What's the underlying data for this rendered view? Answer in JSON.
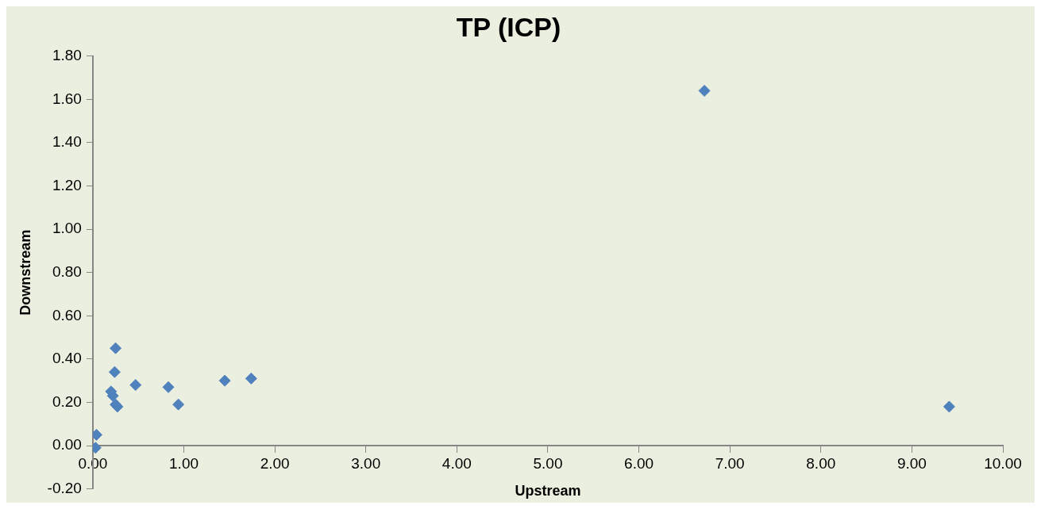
{
  "chart_data": {
    "type": "scatter",
    "title": "TP (ICP)",
    "xlabel": "Upstream",
    "ylabel": "Downstream",
    "x": [
      0.04,
      0.03,
      0.25,
      0.24,
      0.2,
      0.22,
      0.25,
      0.27,
      0.47,
      0.83,
      0.94,
      1.45,
      1.74,
      6.72,
      9.41
    ],
    "series": [
      {
        "color": "#4f81bd",
        "values": [
          0.05,
          -0.01,
          0.45,
          0.34,
          0.25,
          0.23,
          0.19,
          0.18,
          0.28,
          0.27,
          0.19,
          0.3,
          0.31,
          1.64,
          0.18
        ]
      }
    ],
    "xlim": [
      0,
      10
    ],
    "ylim": [
      -0.2,
      1.8
    ],
    "xticks": [
      {
        "value": 0,
        "label": "0.00"
      },
      {
        "value": 1,
        "label": "1.00"
      },
      {
        "value": 2,
        "label": "2.00"
      },
      {
        "value": 3,
        "label": "3.00"
      },
      {
        "value": 4,
        "label": "4.00"
      },
      {
        "value": 5,
        "label": "5.00"
      },
      {
        "value": 6,
        "label": "6.00"
      },
      {
        "value": 7,
        "label": "7.00"
      },
      {
        "value": 8,
        "label": "8.00"
      },
      {
        "value": 9,
        "label": "9.00"
      },
      {
        "value": 10,
        "label": "10.00"
      }
    ],
    "yticks": [
      {
        "value": -0.2,
        "label": "-0.20"
      },
      {
        "value": 0,
        "label": "0.00"
      },
      {
        "value": 0.2,
        "label": "0.20"
      },
      {
        "value": 0.4,
        "label": "0.40"
      },
      {
        "value": 0.6,
        "label": "0.60"
      },
      {
        "value": 0.8,
        "label": "0.80"
      },
      {
        "value": 1,
        "label": "1.00"
      },
      {
        "value": 1.2,
        "label": "1.20"
      },
      {
        "value": 1.4,
        "label": "1.40"
      },
      {
        "value": 1.6,
        "label": "1.60"
      },
      {
        "value": 1.8,
        "label": "1.80"
      }
    ],
    "grid": false,
    "legend": false,
    "marker": "diamond"
  }
}
